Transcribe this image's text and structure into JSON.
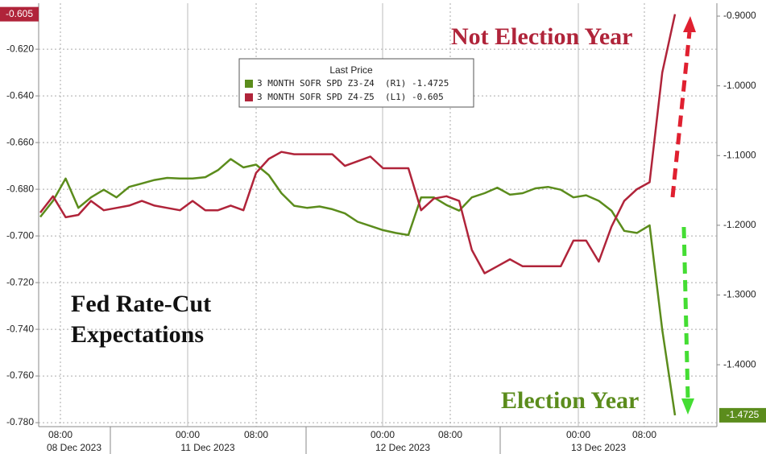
{
  "chart_data": {
    "type": "line",
    "legend_title": "Last Price",
    "annotations": [
      "Not Election Year",
      "Election Year",
      "Fed Rate-Cut",
      "Expectations"
    ],
    "xtick_labels": [
      "08:00",
      "00:00",
      "08:00",
      "00:00",
      "08:00",
      "00:00",
      "08:00"
    ],
    "date_labels": [
      "08 Dec 2023",
      "11 Dec 2023",
      "12 Dec 2023",
      "13 Dec 2023"
    ],
    "ylim": [
      -0.7817,
      -0.6003
    ],
    "yticks": [
      {
        "value": -0.62,
        "label": "-0.620"
      },
      {
        "value": -0.64,
        "label": "-0.640"
      },
      {
        "value": -0.66,
        "label": "-0.660"
      },
      {
        "value": -0.68,
        "label": "-0.680"
      },
      {
        "value": -0.7,
        "label": "-0.700"
      },
      {
        "value": -0.72,
        "label": "-0.720"
      },
      {
        "value": -0.74,
        "label": "-0.740"
      },
      {
        "value": -0.76,
        "label": "-0.760"
      },
      {
        "value": -0.78,
        "label": "-0.780"
      }
    ],
    "y2lim": [
      -1.4888,
      -0.8815
    ],
    "y2ticks": [
      {
        "value": -0.9,
        "label": "-0.9000"
      },
      {
        "value": -1.0,
        "label": "-1.0000"
      },
      {
        "value": -1.1,
        "label": "-1.1000"
      },
      {
        "value": -1.2,
        "label": "-1.2000"
      },
      {
        "value": -1.3,
        "label": "-1.3000"
      },
      {
        "value": -1.4,
        "label": "-1.4000"
      }
    ],
    "grid": true,
    "series": [
      {
        "name": "3 MONTH SOFR SPD Z3-Z4  (R1) -1.4725",
        "color": "#5b8c1c",
        "axis": "y2",
        "values": [
          -1.188,
          -1.165,
          -1.133,
          -1.175,
          -1.16,
          -1.149,
          -1.16,
          -1.145,
          -1.14,
          -1.135,
          -1.132,
          -1.133,
          -1.133,
          -1.131,
          -1.121,
          -1.105,
          -1.117,
          -1.113,
          -1.128,
          -1.154,
          -1.172,
          -1.175,
          -1.173,
          -1.177,
          -1.183,
          -1.195,
          -1.201,
          -1.207,
          -1.211,
          -1.214,
          -1.16,
          -1.16,
          -1.171,
          -1.179,
          -1.16,
          -1.154,
          -1.146,
          -1.156,
          -1.154,
          -1.147,
          -1.145,
          -1.149,
          -1.16,
          -1.157,
          -1.165,
          -1.179,
          -1.208,
          -1.211,
          -1.2,
          -1.35,
          -1.4725
        ]
      },
      {
        "name": "3 MONTH SOFR SPD Z4-Z5  (L1) -0.605",
        "color": "#b0243a",
        "axis": "y",
        "values": [
          -0.69,
          -0.683,
          -0.692,
          -0.691,
          -0.685,
          -0.689,
          -0.688,
          -0.687,
          -0.685,
          -0.687,
          -0.688,
          -0.689,
          -0.685,
          -0.689,
          -0.689,
          -0.687,
          -0.689,
          -0.673,
          -0.667,
          -0.664,
          -0.665,
          -0.665,
          -0.665,
          -0.665,
          -0.67,
          -0.668,
          -0.666,
          -0.671,
          -0.671,
          -0.671,
          -0.689,
          -0.684,
          -0.683,
          -0.685,
          -0.706,
          -0.716,
          -0.713,
          -0.71,
          -0.713,
          -0.713,
          -0.713,
          -0.713,
          -0.702,
          -0.702,
          -0.711,
          -0.696,
          -0.685,
          -0.68,
          -0.677,
          -0.63,
          -0.605
        ]
      }
    ]
  }
}
